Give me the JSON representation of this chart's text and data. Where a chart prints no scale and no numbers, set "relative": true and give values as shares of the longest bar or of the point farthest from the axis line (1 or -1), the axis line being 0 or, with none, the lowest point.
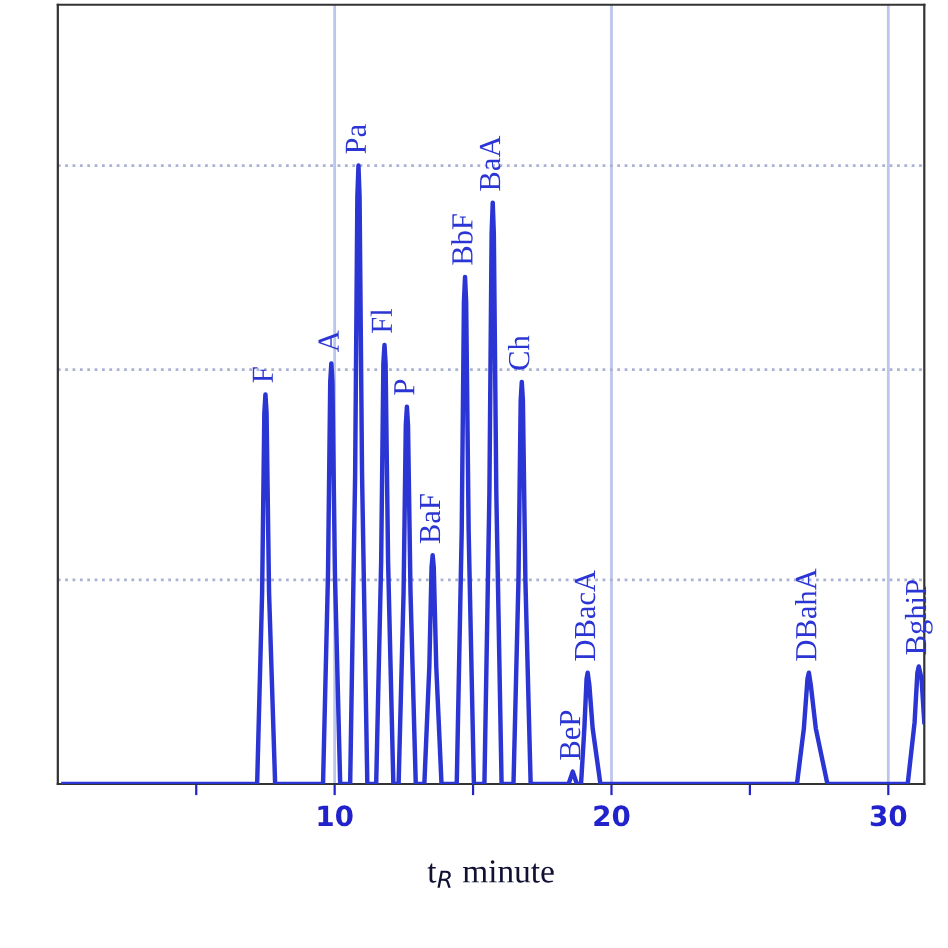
{
  "chart_data": {
    "type": "line",
    "relative": true,
    "xlabel": "t$_{R}$ minute",
    "xlim": [
      0,
      31.3
    ],
    "xticks": [
      {
        "value": 5,
        "label": null
      },
      10,
      {
        "value": 15,
        "label": null
      },
      20,
      {
        "value": 25,
        "label": null
      },
      30
    ],
    "series": [
      {
        "color": "#2b35d4",
        "x": [
          0.2,
          7.2,
          7.38,
          7.46,
          7.5,
          7.54,
          7.63,
          7.85,
          9.58,
          9.76,
          9.84,
          9.88,
          9.92,
          10.01,
          10.2,
          10.56,
          10.74,
          10.82,
          10.86,
          10.9,
          10.99,
          11.18,
          11.5,
          11.68,
          11.76,
          11.8,
          11.84,
          11.93,
          12.12,
          12.31,
          12.49,
          12.57,
          12.61,
          12.65,
          12.74,
          12.93,
          13.24,
          13.42,
          13.5,
          13.54,
          13.58,
          13.67,
          13.86,
          14.41,
          14.59,
          14.67,
          14.71,
          14.75,
          14.84,
          15.03,
          15.41,
          15.59,
          15.67,
          15.71,
          15.75,
          15.84,
          16.03,
          16.46,
          16.64,
          16.72,
          16.76,
          16.8,
          16.89,
          17.08,
          18.45,
          18.6,
          18.75,
          18.9,
          19.02,
          19.1,
          19.14,
          19.2,
          19.32,
          19.6,
          26.7,
          26.95,
          27.08,
          27.13,
          27.2,
          27.38,
          27.8,
          30.7,
          30.95,
          31.05,
          31.1,
          31.2,
          31.3
        ],
        "values": [
          0,
          0,
          0.31,
          0.6,
          0.63,
          0.6,
          0.31,
          0,
          0,
          0.34,
          0.65,
          0.68,
          0.65,
          0.34,
          0,
          0,
          0.5,
          0.95,
          1.0,
          0.95,
          0.5,
          0,
          0,
          0.36,
          0.68,
          0.71,
          0.68,
          0.36,
          0,
          0,
          0.31,
          0.58,
          0.61,
          0.58,
          0.31,
          0,
          0,
          0.19,
          0.35,
          0.37,
          0.35,
          0.19,
          0,
          0,
          0.41,
          0.78,
          0.82,
          0.78,
          0.41,
          0,
          0,
          0.47,
          0.89,
          0.94,
          0.89,
          0.47,
          0,
          0,
          0.33,
          0.62,
          0.65,
          0.62,
          0.33,
          0,
          0,
          0.02,
          0,
          0,
          0.09,
          0.17,
          0.18,
          0.16,
          0.09,
          0,
          0,
          0.09,
          0.17,
          0.18,
          0.16,
          0.09,
          0,
          0,
          0.1,
          0.18,
          0.19,
          0.17,
          0.1
        ]
      }
    ],
    "annotations": [
      {
        "text": "F",
        "x": 7.5,
        "y": 0.63
      },
      {
        "text": "A",
        "x": 9.88,
        "y": 0.68
      },
      {
        "text": "Pa",
        "x": 10.86,
        "y": 1.0
      },
      {
        "text": "Fl",
        "x": 11.8,
        "y": 0.71
      },
      {
        "text": "P",
        "x": 12.61,
        "y": 0.61
      },
      {
        "text": "BaF",
        "x": 13.54,
        "y": 0.37
      },
      {
        "text": "BbF",
        "x": 14.71,
        "y": 0.82
      },
      {
        "text": "BaA",
        "x": 15.71,
        "y": 0.94
      },
      {
        "text": "Ch",
        "x": 16.76,
        "y": 0.65
      },
      {
        "text": "BeP",
        "x": 18.6,
        "y": 0.02
      },
      {
        "text": "DBacA",
        "x": 19.14,
        "y": 0.18
      },
      {
        "text": "DBahA",
        "x": 27.13,
        "y": 0.18
      },
      {
        "text": "BghiP",
        "x": 31.1,
        "y": 0.19
      }
    ],
    "ref_lines": [
      {
        "axis": "x",
        "value": 10,
        "color": "#bcc6ec",
        "line_style": "solid"
      },
      {
        "axis": "x",
        "value": 20,
        "color": "#bcc6ec",
        "line_style": "solid"
      },
      {
        "axis": "x",
        "value": 30,
        "color": "#bcc6ec",
        "line_style": "solid"
      },
      {
        "axis": "y",
        "value": 0.33,
        "color": "#aab2d4",
        "line_style": "dotted"
      },
      {
        "axis": "y",
        "value": 0.67,
        "color": "#aab2d4",
        "line_style": "dotted"
      },
      {
        "axis": "y",
        "value": 1.0,
        "color": "#aab2d4",
        "line_style": "dotted"
      }
    ]
  }
}
